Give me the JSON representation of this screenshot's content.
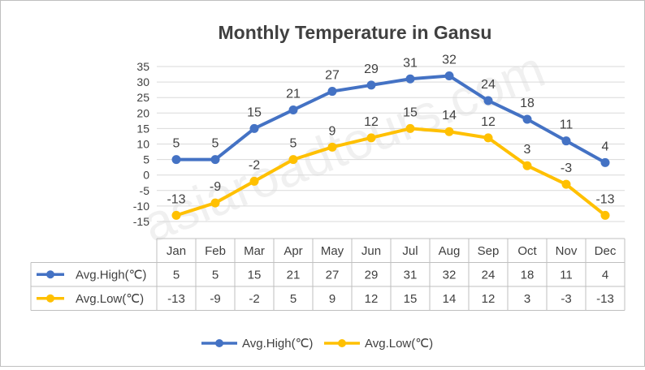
{
  "chart_data": {
    "type": "line",
    "title": "Monthly Temperature in Gansu",
    "categories": [
      "Jan",
      "Feb",
      "Mar",
      "Apr",
      "May",
      "Jun",
      "Jul",
      "Aug",
      "Sep",
      "Oct",
      "Nov",
      "Dec"
    ],
    "series": [
      {
        "name": "Avg.High(℃)",
        "color": "#4472c4",
        "values": [
          5,
          5,
          15,
          21,
          27,
          29,
          31,
          32,
          24,
          18,
          11,
          4
        ]
      },
      {
        "name": "Avg.Low(℃)",
        "color": "#ffc000",
        "values": [
          -13,
          -9,
          -2,
          5,
          9,
          12,
          15,
          14,
          12,
          3,
          -3,
          -13
        ]
      }
    ],
    "yticks": [
      35,
      30,
      25,
      20,
      15,
      10,
      5,
      0,
      -5,
      -10,
      -15
    ],
    "ylim": [
      -15,
      35
    ],
    "grid": true,
    "data_table": true,
    "legend": "bottom",
    "watermark": "asiaroadtours.com"
  }
}
